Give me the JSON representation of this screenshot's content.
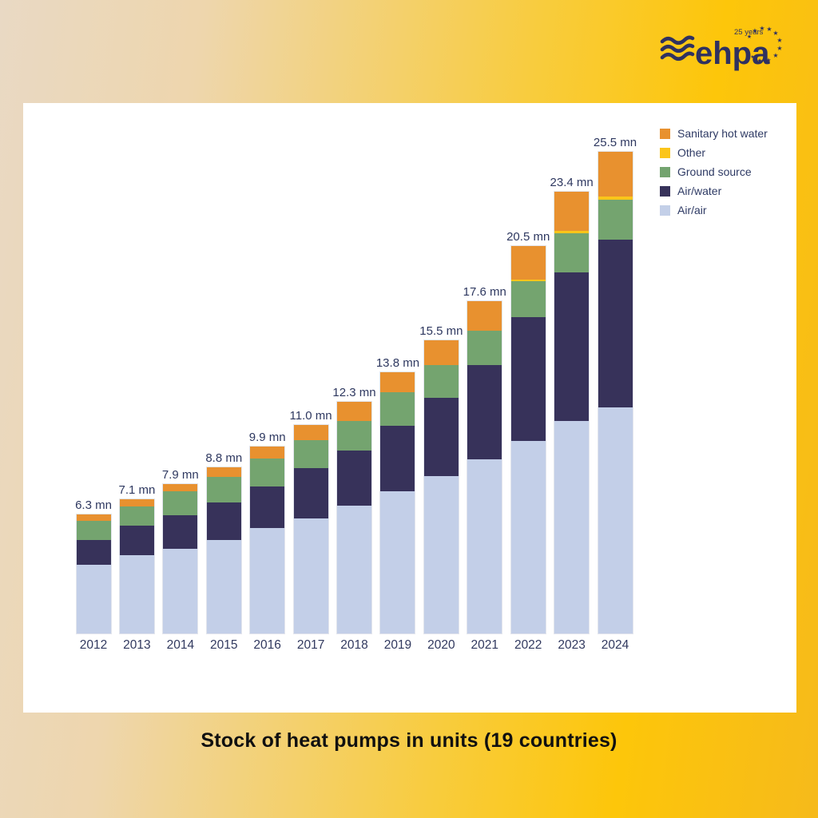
{
  "branding": {
    "logo_text": "ehpa",
    "anniversary": "25 years"
  },
  "title": "Stock of heat pumps in units (19 countries)",
  "chart_data": {
    "type": "bar",
    "stacked": true,
    "title": "Stock of heat pumps in units (19 countries)",
    "xlabel": "",
    "ylabel": "",
    "unit": "mn units",
    "gridlines": false,
    "y_axis_visible": false,
    "legend_position": "top-right",
    "categories": [
      "2012",
      "2013",
      "2014",
      "2015",
      "2016",
      "2017",
      "2018",
      "2019",
      "2020",
      "2021",
      "2022",
      "2023",
      "2024"
    ],
    "series": [
      {
        "name": "Air/air",
        "color": "#c3cfe8",
        "values": [
          3.62,
          4.13,
          4.49,
          4.94,
          5.57,
          6.08,
          6.75,
          7.54,
          8.31,
          9.2,
          10.2,
          11.23,
          11.97
        ]
      },
      {
        "name": "Air/water",
        "color": "#37325a",
        "values": [
          1.32,
          1.57,
          1.75,
          2.0,
          2.21,
          2.66,
          2.95,
          3.47,
          4.15,
          5.0,
          6.54,
          7.88,
          8.88
        ]
      },
      {
        "name": "Ground source",
        "color": "#74a46f",
        "values": [
          1.02,
          1.04,
          1.28,
          1.36,
          1.49,
          1.5,
          1.56,
          1.74,
          1.74,
          1.82,
          1.9,
          2.08,
          2.11
        ]
      },
      {
        "name": "Other",
        "color": "#fbc51a",
        "values": [
          0,
          0,
          0,
          0,
          0,
          0,
          0,
          0,
          0,
          0,
          0.08,
          0.13,
          0.17
        ]
      },
      {
        "name": "Sanitary hot water",
        "color": "#e8912f",
        "values": [
          0.34,
          0.35,
          0.38,
          0.51,
          0.64,
          0.79,
          1.01,
          1.06,
          1.31,
          1.55,
          1.78,
          2.08,
          2.37
        ]
      }
    ],
    "totals": [
      6.3,
      7.1,
      7.9,
      8.8,
      9.9,
      11.0,
      12.3,
      13.8,
      15.5,
      17.6,
      20.5,
      23.4,
      25.5
    ],
    "total_labels": [
      "6.3 mn",
      "7.1 mn",
      "7.9 mn",
      "8.8 mn",
      "9.9 mn",
      "11.0 mn",
      "12.3 mn",
      "13.8 mn",
      "15.5 mn",
      "17.6 mn",
      "20.5 mn",
      "23.4 mn",
      "25.5 mn"
    ],
    "legend_order": [
      "Sanitary hot water",
      "Other",
      "Ground source",
      "Air/water",
      "Air/air"
    ]
  },
  "colors": {
    "logo_navy": "#2f3160",
    "axis_text": "#31395f",
    "panel_background": "#ffffff"
  }
}
